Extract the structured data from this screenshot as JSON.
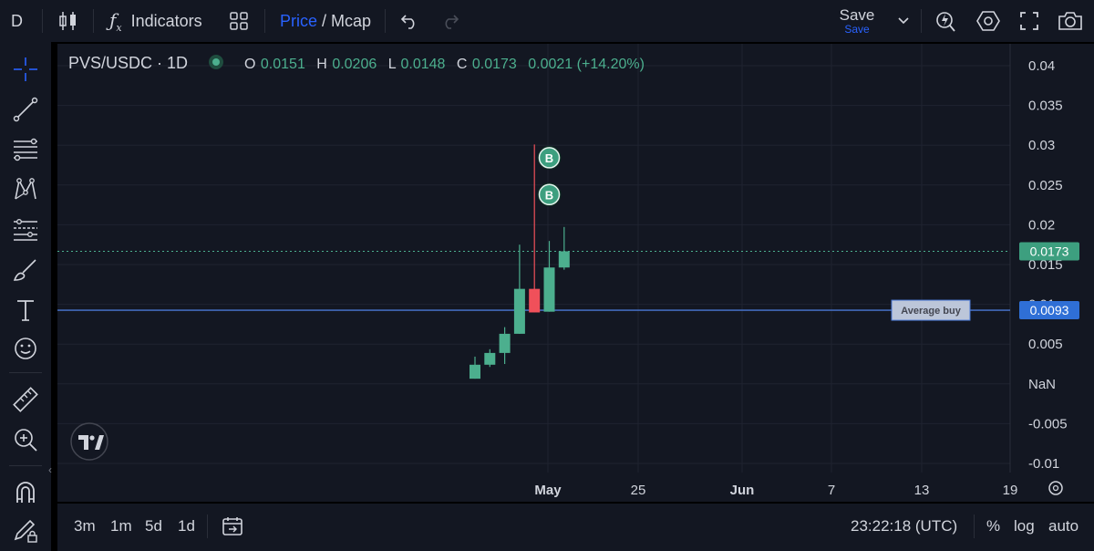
{
  "toolbar": {
    "symbol_short": "D",
    "indicators_label": "Indicators",
    "price_label": "Price",
    "slash": "/",
    "mcap_label": "Mcap",
    "save_label": "Save",
    "save_sub_label": "Save"
  },
  "legend": {
    "title": "PVS/USDC · 1D",
    "o_label": "O",
    "o_value": "0.0151",
    "h_label": "H",
    "h_value": "0.0206",
    "l_label": "L",
    "l_value": "0.0148",
    "c_label": "C",
    "c_value": "0.0173",
    "change": "0.0021 (+14.20%)"
  },
  "bottombar": {
    "range_3m": "3m",
    "range_1m": "1m",
    "range_5d": "5d",
    "range_1d": "1d",
    "clock": "23:22:18 (UTC)",
    "percent_label": "%",
    "log_label": "log",
    "auto_label": "auto"
  },
  "colors": {
    "up": "#4caf8e",
    "down": "#f0505a",
    "avg_line": "#4a78d6",
    "marker": "#3d9f7f",
    "background": "#131722",
    "accent": "#2962ff"
  },
  "chart_data": {
    "type": "candlestick",
    "y_ticks": [
      "0.04",
      "0.035",
      "0.03",
      "0.025",
      "0.02",
      "0.015",
      "0.01",
      "0.005",
      "NaN",
      "-0.005",
      "-0.01"
    ],
    "x_ticks": [
      "May",
      "25",
      "Jun",
      "7",
      "13",
      "19"
    ],
    "ylim": [
      -0.0115,
      0.0425
    ],
    "last_price_label": "0.0173",
    "avg_buy_price_label": "0.0093",
    "avg_buy_value": 0.0093,
    "avg_buy_text": "Average buy",
    "marker_text": "B",
    "candles": [
      {
        "open": 0.0,
        "high": 0.003,
        "low": 0.0,
        "close": 0.0019
      },
      {
        "open": 0.0019,
        "high": 0.004,
        "low": 0.0016,
        "close": 0.0035
      },
      {
        "open": 0.0035,
        "high": 0.007,
        "low": 0.002,
        "close": 0.0061
      },
      {
        "open": 0.0061,
        "high": 0.0182,
        "low": 0.0061,
        "close": 0.0122
      },
      {
        "open": 0.0122,
        "high": 0.0318,
        "low": 0.009,
        "close": 0.009
      },
      {
        "open": 0.0091,
        "high": 0.0187,
        "low": 0.0091,
        "close": 0.0151
      },
      {
        "open": 0.0151,
        "high": 0.0206,
        "low": 0.0148,
        "close": 0.0173
      }
    ],
    "buy_markers": [
      {
        "candle": 5,
        "value": 0.03
      },
      {
        "candle": 5,
        "value": 0.025
      }
    ]
  }
}
